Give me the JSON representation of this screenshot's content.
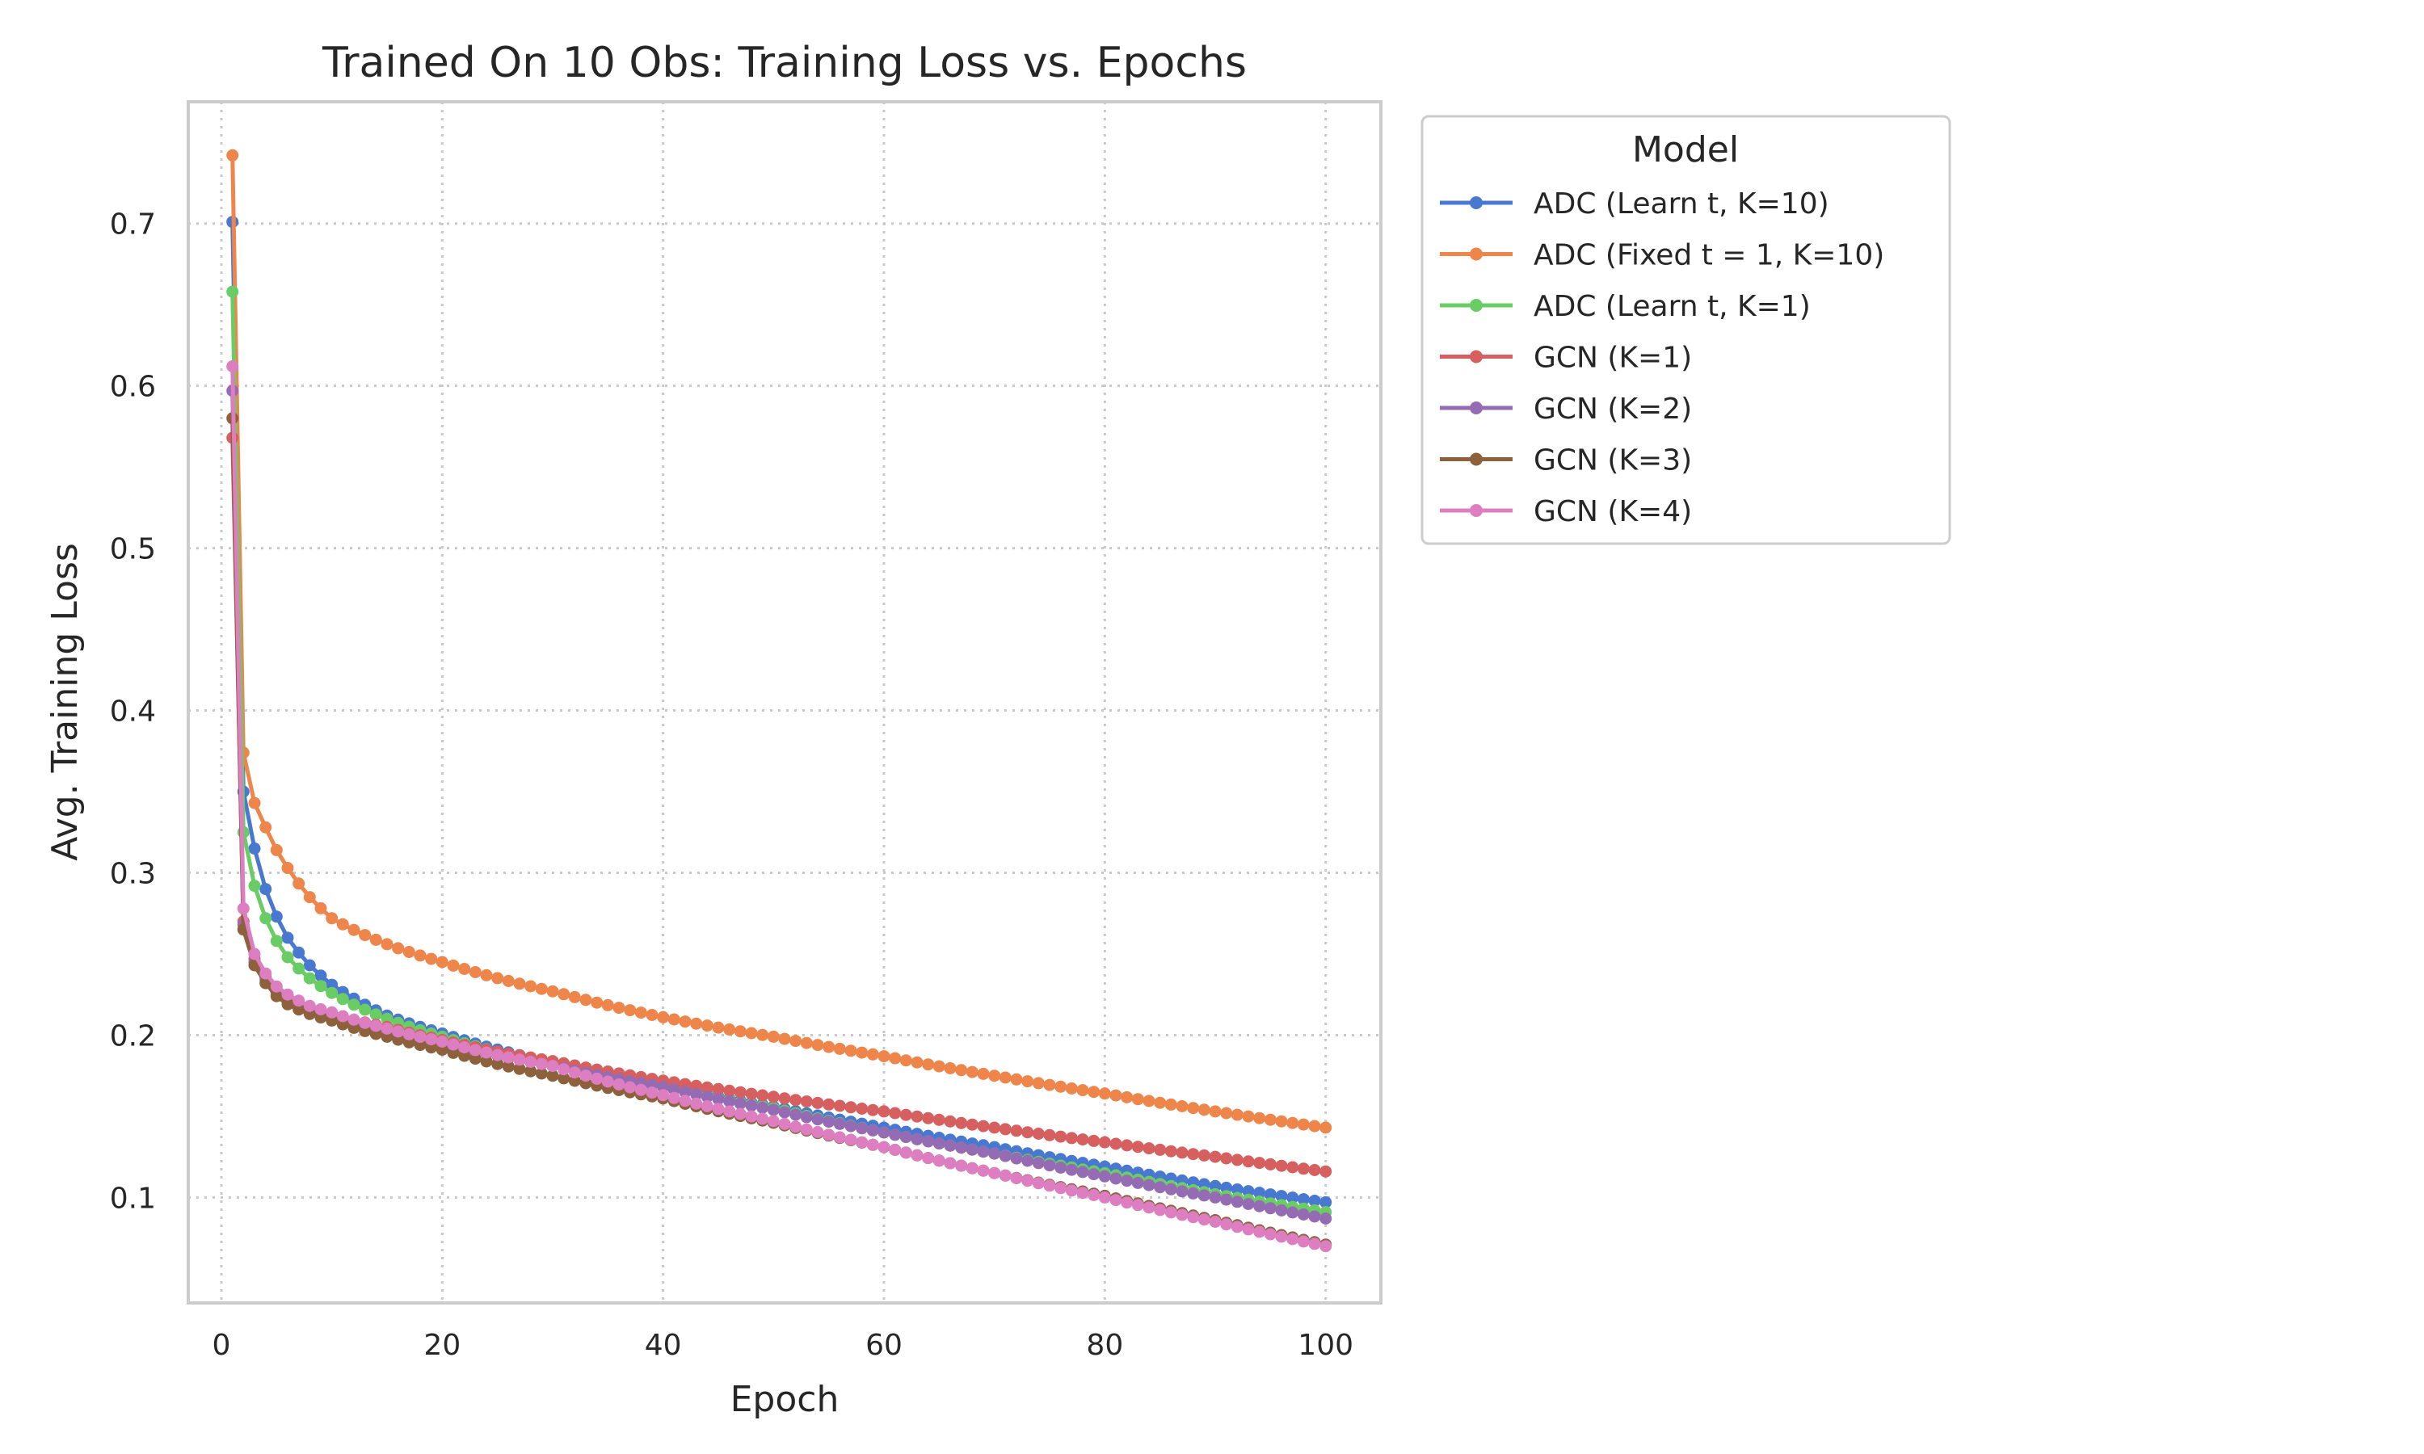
{
  "chart_data": {
    "type": "line",
    "title": "Trained On 10 Obs: Training Loss vs. Epochs",
    "xlabel": "Epoch",
    "ylabel": "Avg. Training Loss",
    "xlim": [
      -3,
      105
    ],
    "ylim": [
      0.035,
      0.775
    ],
    "xticks": [
      0,
      20,
      40,
      60,
      80,
      100
    ],
    "yticks": [
      0.1,
      0.2,
      0.3,
      0.4,
      0.5,
      0.6,
      0.7
    ],
    "grid": true,
    "grid_style": "dotted",
    "legend": {
      "title": "Model",
      "placement": "outside-upper-right"
    },
    "series": [
      {
        "name": "ADC (Learn t, K=10)",
        "color": "#4878d0",
        "anchors": [
          [
            1,
            0.701
          ],
          [
            2,
            0.35
          ],
          [
            3,
            0.315
          ],
          [
            4,
            0.29
          ],
          [
            5,
            0.273
          ],
          [
            6,
            0.26
          ],
          [
            8,
            0.243
          ],
          [
            10,
            0.231
          ],
          [
            15,
            0.212
          ],
          [
            20,
            0.201
          ],
          [
            30,
            0.183
          ],
          [
            40,
            0.169
          ],
          [
            50,
            0.156
          ],
          [
            60,
            0.143
          ],
          [
            70,
            0.131
          ],
          [
            80,
            0.119
          ],
          [
            90,
            0.107
          ],
          [
            100,
            0.097
          ]
        ]
      },
      {
        "name": "ADC (Fixed t = 1, K=10)",
        "color": "#ee854a",
        "anchors": [
          [
            1,
            0.742
          ],
          [
            2,
            0.374
          ],
          [
            3,
            0.343
          ],
          [
            4,
            0.328
          ],
          [
            5,
            0.314
          ],
          [
            6,
            0.303
          ],
          [
            8,
            0.285
          ],
          [
            10,
            0.272
          ],
          [
            15,
            0.256
          ],
          [
            20,
            0.245
          ],
          [
            30,
            0.227
          ],
          [
            40,
            0.211
          ],
          [
            50,
            0.199
          ],
          [
            60,
            0.187
          ],
          [
            70,
            0.175
          ],
          [
            80,
            0.164
          ],
          [
            90,
            0.153
          ],
          [
            100,
            0.143
          ]
        ]
      },
      {
        "name": "ADC (Learn t, K=1)",
        "color": "#6acc64",
        "anchors": [
          [
            1,
            0.658
          ],
          [
            2,
            0.325
          ],
          [
            3,
            0.292
          ],
          [
            4,
            0.272
          ],
          [
            5,
            0.258
          ],
          [
            6,
            0.248
          ],
          [
            8,
            0.235
          ],
          [
            10,
            0.226
          ],
          [
            15,
            0.21
          ],
          [
            20,
            0.199
          ],
          [
            30,
            0.182
          ],
          [
            40,
            0.168
          ],
          [
            50,
            0.155
          ],
          [
            60,
            0.14
          ],
          [
            70,
            0.127
          ],
          [
            80,
            0.115
          ],
          [
            90,
            0.102
          ],
          [
            100,
            0.091
          ]
        ]
      },
      {
        "name": "GCN (K=1)",
        "color": "#d65f5f",
        "anchors": [
          [
            1,
            0.568
          ],
          [
            2,
            0.27
          ],
          [
            3,
            0.247
          ],
          [
            4,
            0.236
          ],
          [
            5,
            0.228
          ],
          [
            6,
            0.223
          ],
          [
            8,
            0.217
          ],
          [
            10,
            0.213
          ],
          [
            15,
            0.205
          ],
          [
            20,
            0.197
          ],
          [
            30,
            0.184
          ],
          [
            40,
            0.172
          ],
          [
            50,
            0.162
          ],
          [
            60,
            0.153
          ],
          [
            70,
            0.143
          ],
          [
            80,
            0.134
          ],
          [
            90,
            0.125
          ],
          [
            100,
            0.116
          ]
        ]
      },
      {
        "name": "GCN (K=2)",
        "color": "#956cb4",
        "anchors": [
          [
            1,
            0.597
          ],
          [
            2,
            0.268
          ],
          [
            3,
            0.245
          ],
          [
            4,
            0.234
          ],
          [
            5,
            0.226
          ],
          [
            6,
            0.221
          ],
          [
            8,
            0.215
          ],
          [
            10,
            0.211
          ],
          [
            15,
            0.202
          ],
          [
            20,
            0.195
          ],
          [
            30,
            0.181
          ],
          [
            40,
            0.168
          ],
          [
            50,
            0.154
          ],
          [
            60,
            0.14
          ],
          [
            70,
            0.127
          ],
          [
            80,
            0.113
          ],
          [
            90,
            0.1
          ],
          [
            100,
            0.087
          ]
        ]
      },
      {
        "name": "GCN (K=3)",
        "color": "#8c613c",
        "anchors": [
          [
            1,
            0.58
          ],
          [
            2,
            0.265
          ],
          [
            3,
            0.243
          ],
          [
            4,
            0.232
          ],
          [
            5,
            0.224
          ],
          [
            6,
            0.219
          ],
          [
            8,
            0.213
          ],
          [
            10,
            0.209
          ],
          [
            15,
            0.199
          ],
          [
            20,
            0.191
          ],
          [
            30,
            0.175
          ],
          [
            40,
            0.161
          ],
          [
            50,
            0.146
          ],
          [
            60,
            0.131
          ],
          [
            70,
            0.115
          ],
          [
            80,
            0.101
          ],
          [
            90,
            0.086
          ],
          [
            100,
            0.071
          ]
        ]
      },
      {
        "name": "GCN (K=4)",
        "color": "#dc7ec0",
        "anchors": [
          [
            1,
            0.612
          ],
          [
            2,
            0.278
          ],
          [
            3,
            0.25
          ],
          [
            4,
            0.238
          ],
          [
            5,
            0.23
          ],
          [
            6,
            0.225
          ],
          [
            8,
            0.218
          ],
          [
            10,
            0.214
          ],
          [
            15,
            0.204
          ],
          [
            20,
            0.196
          ],
          [
            30,
            0.181
          ],
          [
            40,
            0.163
          ],
          [
            50,
            0.147
          ],
          [
            60,
            0.131
          ],
          [
            70,
            0.115
          ],
          [
            80,
            0.1
          ],
          [
            90,
            0.085
          ],
          [
            100,
            0.07
          ]
        ]
      }
    ]
  }
}
